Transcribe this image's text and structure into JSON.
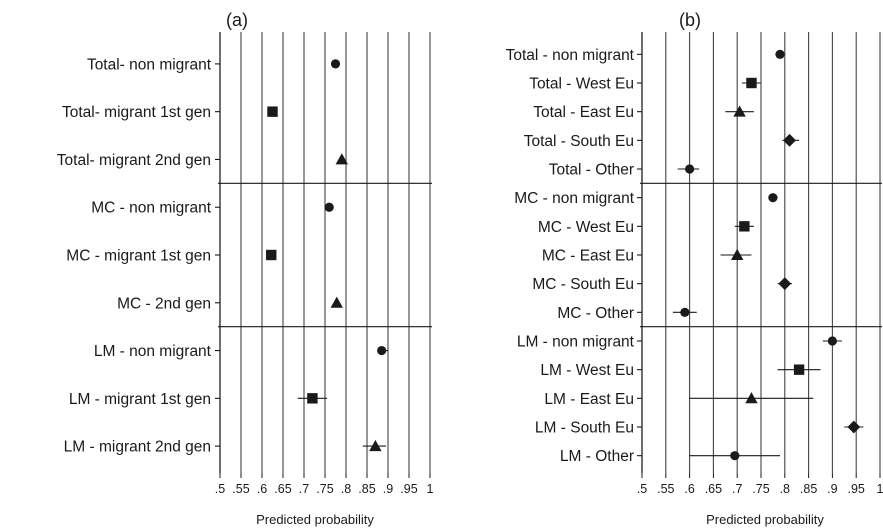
{
  "chart_data": [
    {
      "type": "forest",
      "title": "(a)",
      "xlabel": "Predicted probability",
      "xlim": [
        0.5,
        1.0
      ],
      "ticks": [
        0.5,
        0.55,
        0.6,
        0.65,
        0.7,
        0.75,
        0.8,
        0.85,
        0.9,
        0.95,
        1.0
      ],
      "tick_labels": [
        ".5",
        ".55",
        ".6",
        ".65",
        ".7",
        ".75",
        ".8",
        ".85",
        ".9",
        ".95",
        "1"
      ],
      "grid": true,
      "group_breaks_after": [
        2,
        5
      ],
      "rows": [
        {
          "label": "Total- non migrant",
          "value": 0.775,
          "ci": [
            0.77,
            0.78
          ],
          "marker": "circle"
        },
        {
          "label": "Total- migrant 1st gen",
          "value": 0.625,
          "ci": [
            0.62,
            0.63
          ],
          "marker": "square"
        },
        {
          "label": "Total- migrant 2nd gen",
          "value": 0.79,
          "ci": [
            0.785,
            0.795
          ],
          "marker": "triangle"
        },
        {
          "label": "MC - non migrant",
          "value": 0.76,
          "ci": [
            0.755,
            0.765
          ],
          "marker": "circle"
        },
        {
          "label": "MC - migrant 1st gen",
          "value": 0.622,
          "ci": [
            0.617,
            0.627
          ],
          "marker": "square"
        },
        {
          "label": "MC - 2nd gen",
          "value": 0.778,
          "ci": [
            0.773,
            0.783
          ],
          "marker": "triangle"
        },
        {
          "label": "LM - non migrant",
          "value": 0.885,
          "ci": [
            0.875,
            0.9
          ],
          "marker": "circle"
        },
        {
          "label": "LM - migrant 1st gen",
          "value": 0.72,
          "ci": [
            0.685,
            0.755
          ],
          "marker": "square"
        },
        {
          "label": "LM - migrant 2nd gen",
          "value": 0.87,
          "ci": [
            0.84,
            0.895
          ],
          "marker": "triangle"
        }
      ]
    },
    {
      "type": "forest",
      "title": "(b)",
      "xlabel": "Predicted probability",
      "xlim": [
        0.5,
        1.0
      ],
      "ticks": [
        0.5,
        0.55,
        0.6,
        0.65,
        0.7,
        0.75,
        0.8,
        0.85,
        0.9,
        0.95,
        1.0
      ],
      "tick_labels": [
        ".5",
        ".55",
        ".6",
        ".65",
        ".7",
        ".75",
        ".8",
        ".85",
        ".9",
        ".95",
        "1"
      ],
      "grid": true,
      "group_breaks_after": [
        4,
        9
      ],
      "rows": [
        {
          "label": "Total - non migrant",
          "value": 0.79,
          "ci": [
            0.78,
            0.8
          ],
          "marker": "circle"
        },
        {
          "label": "Total - West Eu",
          "value": 0.73,
          "ci": [
            0.71,
            0.75
          ],
          "marker": "square"
        },
        {
          "label": "Total - East Eu",
          "value": 0.705,
          "ci": [
            0.675,
            0.735
          ],
          "marker": "triangle"
        },
        {
          "label": "Total - South Eu",
          "value": 0.81,
          "ci": [
            0.795,
            0.83
          ],
          "marker": "diamond"
        },
        {
          "label": "Total - Other",
          "value": 0.6,
          "ci": [
            0.575,
            0.62
          ],
          "marker": "circle"
        },
        {
          "label": "MC - non migrant",
          "value": 0.775,
          "ci": [
            0.77,
            0.785
          ],
          "marker": "circle"
        },
        {
          "label": "MC - West Eu",
          "value": 0.715,
          "ci": [
            0.695,
            0.735
          ],
          "marker": "square"
        },
        {
          "label": "MC - East Eu",
          "value": 0.7,
          "ci": [
            0.665,
            0.73
          ],
          "marker": "triangle"
        },
        {
          "label": "MC - South Eu",
          "value": 0.8,
          "ci": [
            0.785,
            0.815
          ],
          "marker": "diamond"
        },
        {
          "label": "MC - Other",
          "value": 0.59,
          "ci": [
            0.565,
            0.615
          ],
          "marker": "circle"
        },
        {
          "label": "LM - non migrant",
          "value": 0.9,
          "ci": [
            0.88,
            0.92
          ],
          "marker": "circle"
        },
        {
          "label": "LM - West Eu",
          "value": 0.83,
          "ci": [
            0.785,
            0.875
          ],
          "marker": "square"
        },
        {
          "label": "LM - East Eu",
          "value": 0.73,
          "ci": [
            0.6,
            0.86
          ],
          "marker": "triangle"
        },
        {
          "label": "LM - South Eu",
          "value": 0.945,
          "ci": [
            0.925,
            0.965
          ],
          "marker": "diamond"
        },
        {
          "label": "LM - Other",
          "value": 0.695,
          "ci": [
            0.6,
            0.79
          ],
          "marker": "circle"
        }
      ]
    }
  ]
}
